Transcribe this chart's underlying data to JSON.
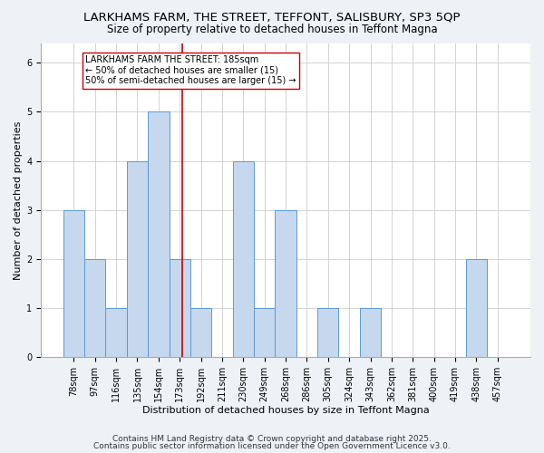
{
  "title1": "LARKHAMS FARM, THE STREET, TEFFONT, SALISBURY, SP3 5QP",
  "title2": "Size of property relative to detached houses in Teffont Magna",
  "xlabel": "Distribution of detached houses by size in Teffont Magna",
  "ylabel": "Number of detached properties",
  "categories": [
    "78sqm",
    "97sqm",
    "116sqm",
    "135sqm",
    "154sqm",
    "173sqm",
    "192sqm",
    "211sqm",
    "230sqm",
    "249sqm",
    "268sqm",
    "286sqm",
    "305sqm",
    "324sqm",
    "343sqm",
    "362sqm",
    "381sqm",
    "400sqm",
    "419sqm",
    "438sqm",
    "457sqm"
  ],
  "values": [
    3,
    2,
    1,
    4,
    5,
    2,
    1,
    0,
    4,
    1,
    3,
    0,
    1,
    0,
    1,
    0,
    0,
    0,
    0,
    2,
    0
  ],
  "bar_color": "#c5d8ed",
  "bar_edge_color": "#5b9bd5",
  "reference_line_color": "#cc0000",
  "annotation_text": "LARKHAMS FARM THE STREET: 185sqm\n← 50% of detached houses are smaller (15)\n50% of semi-detached houses are larger (15) →",
  "annotation_box_color": "white",
  "annotation_box_edge_color": "#cc0000",
  "ylim": [
    0,
    6.4
  ],
  "yticks": [
    0,
    1,
    2,
    3,
    4,
    5,
    6
  ],
  "footer1": "Contains HM Land Registry data © Crown copyright and database right 2025.",
  "footer2": "Contains public sector information licensed under the Open Government Licence v3.0.",
  "bg_color": "#eef2f7",
  "plot_bg_color": "white",
  "title_fontsize": 9.5,
  "subtitle_fontsize": 8.5,
  "axis_label_fontsize": 8,
  "tick_fontsize": 7,
  "annotation_fontsize": 7,
  "footer_fontsize": 6.5
}
